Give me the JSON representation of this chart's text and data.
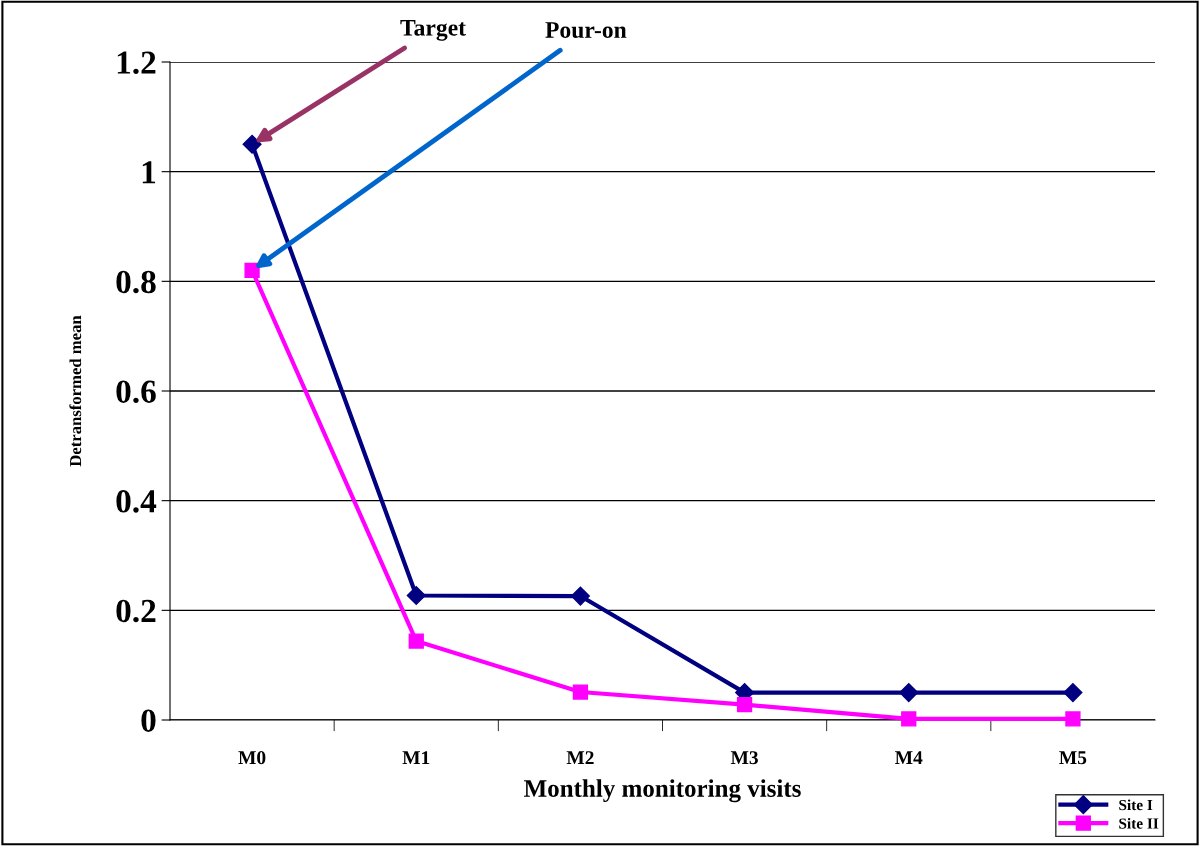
{
  "chart_data": {
    "type": "line",
    "xlabel": "Monthly monitoring visits",
    "ylabel": "Detransformed mean",
    "categories": [
      "M0",
      "M1",
      "M2",
      "M3",
      "M4",
      "M5"
    ],
    "series": [
      {
        "name": "Site I",
        "color": "#000080",
        "marker": "diamond",
        "values": [
          1.05,
          0.227,
          0.226,
          0.05,
          0.05,
          0.05
        ]
      },
      {
        "name": "Site II",
        "color": "#ff00ff",
        "marker": "square",
        "values": [
          0.82,
          0.144,
          0.051,
          0.028,
          0.002,
          0.002
        ]
      }
    ],
    "ylim": [
      0,
      1.2
    ],
    "yticks": [
      0,
      0.2,
      0.4,
      0.6,
      0.8,
      1,
      1.2
    ],
    "grid": "y",
    "legend": "bottom right",
    "line_style": "solid",
    "annotations": [
      {
        "text": "Target",
        "x": "M0",
        "y": 1.05
      },
      {
        "text": "Pour-on",
        "x": "M0",
        "y": 0.82
      }
    ]
  }
}
